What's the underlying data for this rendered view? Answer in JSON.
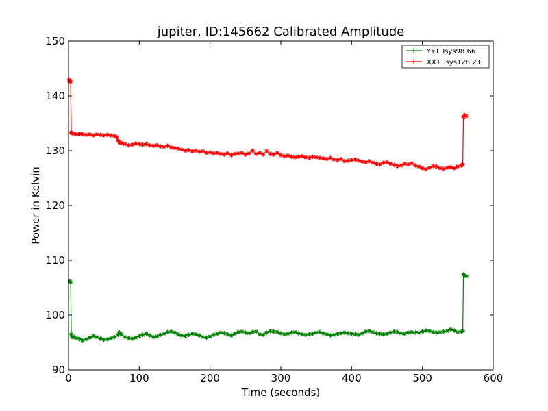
{
  "chart_data": {
    "type": "line",
    "title": "jupiter, ID:145662 Calibrated Amplitude",
    "xlabel": "Time (seconds)",
    "ylabel": "Power in Kelvin",
    "xlim": [
      0,
      600
    ],
    "ylim": [
      90,
      150
    ],
    "xticks": [
      0,
      100,
      200,
      300,
      400,
      500,
      600
    ],
    "yticks": [
      90,
      100,
      110,
      120,
      130,
      140,
      150
    ],
    "xtick_labels": [
      "0",
      "100",
      "200",
      "300",
      "400",
      "500",
      "600"
    ],
    "ytick_labels": [
      "90",
      "100",
      "110",
      "120",
      "130",
      "140",
      "150"
    ],
    "legend_position": "top-right",
    "series": [
      {
        "name": "YY1 Tsys98.66",
        "color": "#008000",
        "x": [
          2,
          3,
          4,
          5,
          8,
          12,
          16,
          20,
          25,
          30,
          35,
          40,
          45,
          50,
          55,
          60,
          65,
          70,
          72,
          75,
          80,
          85,
          90,
          95,
          100,
          105,
          110,
          115,
          120,
          125,
          130,
          135,
          140,
          145,
          150,
          155,
          160,
          165,
          170,
          175,
          180,
          185,
          190,
          195,
          200,
          205,
          210,
          215,
          220,
          225,
          230,
          235,
          240,
          245,
          250,
          255,
          260,
          265,
          270,
          275,
          280,
          285,
          290,
          295,
          300,
          305,
          310,
          315,
          320,
          325,
          330,
          335,
          340,
          345,
          350,
          355,
          360,
          365,
          370,
          375,
          380,
          385,
          390,
          395,
          400,
          405,
          410,
          415,
          420,
          425,
          430,
          435,
          440,
          445,
          450,
          455,
          460,
          465,
          470,
          475,
          480,
          485,
          490,
          495,
          500,
          505,
          510,
          515,
          520,
          525,
          530,
          535,
          540,
          545,
          550,
          555,
          557,
          558,
          560,
          562
        ],
        "values": [
          106.2,
          106.0,
          96.5,
          96.0,
          96.0,
          95.8,
          95.6,
          95.4,
          95.6,
          95.9,
          96.2,
          96.0,
          95.7,
          95.5,
          95.6,
          95.8,
          96.0,
          96.4,
          96.8,
          96.5,
          96.0,
          95.8,
          95.7,
          95.9,
          96.2,
          96.4,
          96.6,
          96.3,
          96.0,
          96.1,
          96.4,
          96.6,
          96.9,
          97.0,
          96.8,
          96.5,
          96.3,
          96.2,
          96.4,
          96.6,
          96.5,
          96.3,
          96.0,
          95.9,
          96.1,
          96.4,
          96.6,
          96.8,
          96.7,
          96.5,
          96.3,
          96.6,
          96.9,
          97.0,
          96.8,
          96.7,
          96.9,
          97.0,
          96.5,
          96.4,
          96.8,
          97.1,
          97.0,
          96.9,
          96.7,
          96.5,
          96.6,
          96.8,
          96.9,
          96.7,
          96.5,
          96.4,
          96.5,
          96.6,
          96.8,
          96.9,
          96.7,
          96.5,
          96.3,
          96.4,
          96.6,
          96.7,
          96.8,
          96.7,
          96.6,
          96.5,
          96.4,
          96.7,
          97.0,
          97.1,
          96.9,
          96.7,
          96.6,
          96.5,
          96.6,
          96.8,
          97.0,
          96.9,
          96.7,
          96.6,
          96.8,
          96.9,
          96.8,
          96.8,
          97.0,
          97.2,
          97.1,
          96.9,
          96.8,
          96.9,
          97.0,
          97.1,
          97.4,
          97.2,
          96.9,
          97.0,
          97.1,
          107.4,
          107.2,
          107.1
        ]
      },
      {
        "name": "XX1 Tsys128.23",
        "color": "#ff0000",
        "x": [
          1,
          2,
          3,
          4,
          5,
          8,
          12,
          16,
          20,
          25,
          30,
          35,
          40,
          45,
          50,
          55,
          60,
          65,
          68,
          70,
          72,
          75,
          80,
          85,
          90,
          95,
          100,
          105,
          110,
          115,
          120,
          125,
          130,
          135,
          140,
          145,
          150,
          155,
          160,
          165,
          170,
          175,
          180,
          185,
          190,
          195,
          200,
          205,
          210,
          215,
          220,
          225,
          230,
          235,
          240,
          245,
          250,
          255,
          260,
          265,
          270,
          275,
          280,
          285,
          290,
          295,
          300,
          305,
          310,
          315,
          320,
          325,
          330,
          335,
          340,
          345,
          350,
          355,
          360,
          365,
          370,
          375,
          380,
          385,
          390,
          395,
          400,
          405,
          410,
          415,
          420,
          425,
          430,
          435,
          440,
          445,
          450,
          455,
          460,
          465,
          470,
          475,
          480,
          485,
          490,
          495,
          500,
          505,
          510,
          515,
          520,
          525,
          530,
          535,
          540,
          545,
          550,
          555,
          557,
          558,
          560,
          562
        ],
        "values": [
          142.9,
          142.7,
          142.6,
          133.3,
          133.2,
          133.1,
          133.0,
          133.1,
          133.0,
          132.9,
          133.0,
          132.8,
          133.0,
          132.9,
          132.8,
          132.9,
          132.8,
          132.7,
          132.5,
          131.8,
          131.5,
          131.4,
          131.2,
          131.0,
          131.1,
          131.3,
          131.2,
          131.1,
          131.2,
          131.0,
          130.9,
          131.0,
          130.8,
          130.7,
          130.9,
          130.6,
          130.5,
          130.4,
          130.2,
          130.0,
          130.1,
          129.9,
          130.0,
          129.8,
          129.9,
          129.6,
          129.7,
          129.5,
          129.6,
          129.4,
          129.3,
          129.5,
          129.2,
          129.4,
          129.5,
          129.6,
          129.3,
          129.5,
          130.0,
          129.4,
          129.6,
          129.3,
          129.9,
          129.4,
          129.3,
          129.6,
          129.2,
          129.0,
          129.1,
          128.9,
          128.8,
          128.9,
          129.0,
          128.8,
          128.7,
          128.9,
          128.8,
          128.7,
          128.6,
          128.5,
          128.7,
          128.4,
          128.3,
          128.5,
          128.1,
          128.2,
          128.3,
          128.4,
          128.2,
          128.0,
          127.9,
          128.1,
          127.8,
          127.6,
          127.5,
          127.8,
          127.9,
          127.6,
          127.4,
          127.2,
          127.3,
          127.6,
          127.5,
          127.7,
          127.3,
          127.1,
          126.8,
          126.6,
          126.9,
          127.2,
          127.1,
          126.8,
          126.7,
          126.9,
          127.0,
          126.8,
          127.1,
          127.3,
          127.5,
          136.2,
          136.5,
          136.3
        ]
      }
    ]
  }
}
